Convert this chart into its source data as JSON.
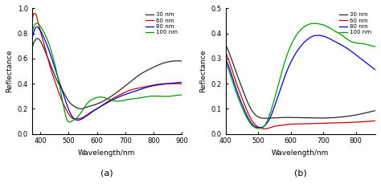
{
  "subplot_a": {
    "title": "(a)",
    "xlabel": "Wavelength/nm",
    "ylabel": "Reflectance",
    "xlim": [
      370,
      900
    ],
    "ylim": [
      0.0,
      1.0
    ],
    "yticks": [
      0.0,
      0.2,
      0.4,
      0.6,
      0.8,
      1.0
    ],
    "xticks": [
      400,
      500,
      600,
      700,
      800,
      900
    ],
    "legend_labels": [
      "30 nm",
      "60 nm",
      "80 nm",
      "100 nm"
    ],
    "colors": [
      "#2a2a2a",
      "#cc0000",
      "#0000cc",
      "#009900"
    ],
    "curves": {
      "30nm": {
        "x": [
          370,
          380,
          390,
          400,
          420,
          440,
          460,
          480,
          500,
          520,
          540,
          560,
          590,
          630,
          670,
          710,
          750,
          790,
          830,
          870,
          900
        ],
        "y": [
          0.68,
          0.74,
          0.76,
          0.74,
          0.64,
          0.53,
          0.42,
          0.34,
          0.26,
          0.22,
          0.2,
          0.21,
          0.23,
          0.27,
          0.33,
          0.4,
          0.47,
          0.52,
          0.56,
          0.58,
          0.58
        ]
      },
      "60nm": {
        "x": [
          370,
          375,
          380,
          385,
          390,
          400,
          415,
          430,
          450,
          470,
          490,
          510,
          530,
          550,
          570,
          600,
          640,
          680,
          720,
          760,
          800,
          840,
          875,
          900
        ],
        "y": [
          0.88,
          0.95,
          0.96,
          0.95,
          0.91,
          0.82,
          0.7,
          0.57,
          0.43,
          0.3,
          0.2,
          0.13,
          0.12,
          0.13,
          0.16,
          0.2,
          0.26,
          0.31,
          0.35,
          0.37,
          0.39,
          0.4,
          0.4,
          0.4
        ]
      },
      "80nm": {
        "x": [
          370,
          378,
          385,
          395,
          410,
          425,
          445,
          465,
          485,
          505,
          520,
          535,
          555,
          580,
          615,
          655,
          695,
          735,
          775,
          815,
          855,
          895,
          900
        ],
        "y": [
          0.75,
          0.82,
          0.85,
          0.84,
          0.78,
          0.7,
          0.57,
          0.43,
          0.29,
          0.17,
          0.12,
          0.11,
          0.13,
          0.17,
          0.22,
          0.27,
          0.31,
          0.34,
          0.37,
          0.39,
          0.4,
          0.41,
          0.41
        ]
      },
      "100nm": {
        "x": [
          370,
          378,
          385,
          395,
          410,
          425,
          440,
          455,
          465,
          475,
          485,
          495,
          510,
          530,
          550,
          565,
          580,
          600,
          625,
          650,
          675,
          700,
          730,
          760,
          790,
          820,
          860,
          895,
          900
        ],
        "y": [
          0.8,
          0.86,
          0.88,
          0.87,
          0.82,
          0.75,
          0.65,
          0.52,
          0.42,
          0.3,
          0.19,
          0.11,
          0.1,
          0.13,
          0.19,
          0.24,
          0.27,
          0.29,
          0.29,
          0.27,
          0.26,
          0.27,
          0.28,
          0.29,
          0.3,
          0.3,
          0.3,
          0.31,
          0.31
        ]
      }
    }
  },
  "subplot_b": {
    "title": "(b)",
    "xlabel": "Wavelength/nm",
    "ylabel": "Reflectance",
    "xlim": [
      400,
      860
    ],
    "ylim": [
      0.0,
      0.5
    ],
    "yticks": [
      0.0,
      0.1,
      0.2,
      0.3,
      0.4,
      0.5
    ],
    "xticks": [
      400,
      500,
      600,
      700,
      800
    ],
    "legend_labels": [
      "30 nm",
      "60 nm",
      "80 nm",
      "100 nm"
    ],
    "colors": [
      "#2a2a2a",
      "#cc0000",
      "#0000cc",
      "#009900"
    ],
    "curves": {
      "30nm": {
        "x": [
          400,
          415,
          430,
          450,
          465,
          480,
          495,
          510,
          525,
          545,
          570,
          610,
          655,
          700,
          745,
          785,
          825,
          860
        ],
        "y": [
          0.355,
          0.31,
          0.255,
          0.185,
          0.135,
          0.095,
          0.072,
          0.063,
          0.062,
          0.063,
          0.065,
          0.065,
          0.064,
          0.063,
          0.066,
          0.072,
          0.082,
          0.093
        ]
      },
      "60nm": {
        "x": [
          400,
          415,
          430,
          450,
          465,
          480,
          495,
          510,
          520,
          530,
          545,
          565,
          595,
          640,
          690,
          740,
          790,
          830,
          860
        ],
        "y": [
          0.325,
          0.275,
          0.215,
          0.145,
          0.095,
          0.055,
          0.032,
          0.022,
          0.02,
          0.022,
          0.028,
          0.033,
          0.038,
          0.04,
          0.042,
          0.044,
          0.046,
          0.049,
          0.052
        ]
      },
      "80nm": {
        "x": [
          400,
          415,
          430,
          450,
          465,
          480,
          492,
          505,
          515,
          522,
          530,
          545,
          565,
          590,
          620,
          650,
          670,
          690,
          710,
          730,
          755,
          785,
          820,
          850,
          860
        ],
        "y": [
          0.3,
          0.25,
          0.19,
          0.12,
          0.075,
          0.042,
          0.028,
          0.025,
          0.028,
          0.035,
          0.048,
          0.09,
          0.165,
          0.255,
          0.33,
          0.375,
          0.39,
          0.392,
          0.385,
          0.372,
          0.355,
          0.33,
          0.295,
          0.265,
          0.255
        ]
      },
      "100nm": {
        "x": [
          400,
          415,
          430,
          450,
          465,
          480,
          492,
          505,
          515,
          522,
          530,
          545,
          565,
          590,
          620,
          648,
          668,
          688,
          708,
          728,
          755,
          785,
          820,
          850,
          860
        ],
        "y": [
          0.285,
          0.235,
          0.175,
          0.108,
          0.065,
          0.036,
          0.024,
          0.022,
          0.026,
          0.036,
          0.058,
          0.115,
          0.21,
          0.318,
          0.398,
          0.432,
          0.44,
          0.438,
          0.43,
          0.415,
          0.395,
          0.368,
          0.36,
          0.35,
          0.348
        ]
      }
    }
  }
}
